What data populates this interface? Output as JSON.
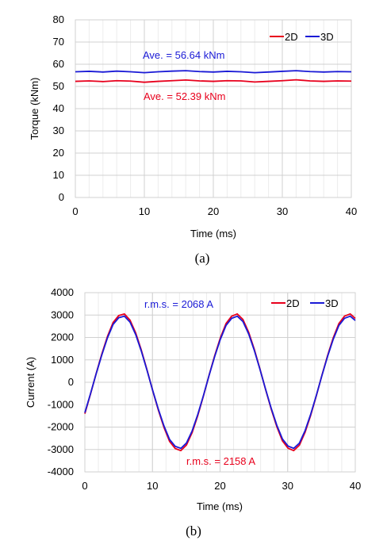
{
  "chart_data": [
    {
      "type": "line",
      "caption": "(a)",
      "xlabel": "Time (ms)",
      "ylabel": "Torque (kNm)",
      "xlim": [
        0,
        40
      ],
      "ylim": [
        0,
        80
      ],
      "xticks": [
        0,
        10,
        20,
        30,
        40
      ],
      "yticks": [
        0,
        10,
        20,
        30,
        40,
        50,
        60,
        70,
        80
      ],
      "grid": true,
      "legend": "top-right",
      "series": [
        {
          "name": "2D",
          "color": "#e8001c",
          "x": [
            0,
            2,
            4,
            6,
            8,
            10,
            12,
            14,
            16,
            18,
            20,
            22,
            24,
            26,
            28,
            30,
            32,
            34,
            36,
            38,
            40
          ],
          "y": [
            52.3,
            52.5,
            52.2,
            52.6,
            52.4,
            51.9,
            52.3,
            52.6,
            52.9,
            52.5,
            52.3,
            52.6,
            52.5,
            52.0,
            52.3,
            52.6,
            53.0,
            52.5,
            52.3,
            52.5,
            52.4
          ]
        },
        {
          "name": "3D",
          "color": "#1a1ad6",
          "x": [
            0,
            2,
            4,
            6,
            8,
            10,
            12,
            14,
            16,
            18,
            20,
            22,
            24,
            26,
            28,
            30,
            32,
            34,
            36,
            38,
            40
          ],
          "y": [
            56.6,
            56.8,
            56.5,
            56.9,
            56.6,
            56.2,
            56.6,
            56.9,
            57.1,
            56.7,
            56.5,
            56.8,
            56.6,
            56.2,
            56.5,
            56.8,
            57.1,
            56.7,
            56.5,
            56.7,
            56.6
          ]
        }
      ],
      "annotations": [
        {
          "text": "Ave. = 56.64 kNm",
          "color": "#1a1ad6"
        },
        {
          "text": "Ave. = 52.39 kNm",
          "color": "#e8001c"
        }
      ]
    },
    {
      "type": "line",
      "caption": "(b)",
      "xlabel": "Time (ms)",
      "ylabel": "Current (A)",
      "xlim": [
        0,
        40
      ],
      "ylim": [
        -4000,
        4000
      ],
      "xticks": [
        0,
        10,
        20,
        30,
        40
      ],
      "yticks": [
        -4000,
        -3000,
        -2000,
        -1000,
        0,
        1000,
        2000,
        3000,
        4000
      ],
      "grid": true,
      "legend": "top-right",
      "series": [
        {
          "name": "2D",
          "color": "#e8001c",
          "x": [
            0,
            0.84,
            1.67,
            2.51,
            3.34,
            4.18,
            5.01,
            5.85,
            6.68,
            7.52,
            8.35,
            9.19,
            10.02,
            10.86,
            11.69,
            12.53,
            13.36,
            14.2,
            15.03,
            15.87,
            16.7,
            17.54,
            18.37,
            19.21,
            20.04,
            20.88,
            21.71,
            22.55,
            23.38,
            24.22,
            25.05,
            25.89,
            26.72,
            27.56,
            28.39,
            29.23,
            30.06,
            30.9,
            31.73,
            32.57,
            33.4,
            34.24,
            35.07,
            35.91,
            36.74,
            37.58,
            38.41,
            39.25,
            40.0
          ],
          "y": [
            -1402,
            -520,
            390,
            1265,
            2044,
            2671,
            2978,
            3050,
            2775,
            2202,
            1440,
            560,
            -360,
            -1232,
            -2005,
            -2640,
            -2955,
            -3050,
            -2802,
            -2245,
            -1488,
            -612,
            310,
            1195,
            1980,
            2622,
            2950,
            3050,
            2805,
            2240,
            1486,
            608,
            -308,
            -1194,
            -1979,
            -2620,
            -2946,
            -3050,
            -2810,
            -2236,
            -1480,
            -603,
            316,
            1200,
            1985,
            2624,
            2954,
            3050,
            2850
          ]
        },
        {
          "name": "3D",
          "color": "#1a1ad6",
          "x": [
            0,
            0.84,
            1.67,
            2.51,
            3.34,
            4.18,
            5.01,
            5.85,
            6.68,
            7.52,
            8.35,
            9.19,
            10.02,
            10.86,
            11.69,
            12.53,
            13.36,
            14.2,
            15.03,
            15.87,
            16.7,
            17.54,
            18.37,
            19.21,
            20.04,
            20.88,
            21.71,
            22.55,
            23.38,
            24.22,
            25.05,
            25.89,
            26.72,
            27.56,
            28.39,
            29.23,
            30.06,
            30.9,
            31.73,
            32.57,
            33.4,
            34.24,
            35.07,
            35.91,
            36.74,
            37.58,
            38.41,
            39.25,
            40.0
          ],
          "y": [
            -1360,
            -505,
            375,
            1222,
            1977,
            2584,
            2880,
            2950,
            2684,
            2130,
            1392,
            540,
            -348,
            -1191,
            -1939,
            -2553,
            -2858,
            -2950,
            -2710,
            -2171,
            -1439,
            -592,
            300,
            1155,
            1915,
            2536,
            2853,
            2950,
            2713,
            2166,
            1437,
            588,
            -298,
            -1155,
            -1914,
            -2534,
            -2849,
            -2950,
            -2718,
            -2162,
            -1431,
            -583,
            306,
            1161,
            1920,
            2538,
            2857,
            2950,
            2760
          ]
        }
      ],
      "annotations": [
        {
          "text": "r.m.s. = 2068 A",
          "color": "#1a1ad6"
        },
        {
          "text": "r.m.s. = 2158 A",
          "color": "#e8001c"
        }
      ]
    }
  ]
}
